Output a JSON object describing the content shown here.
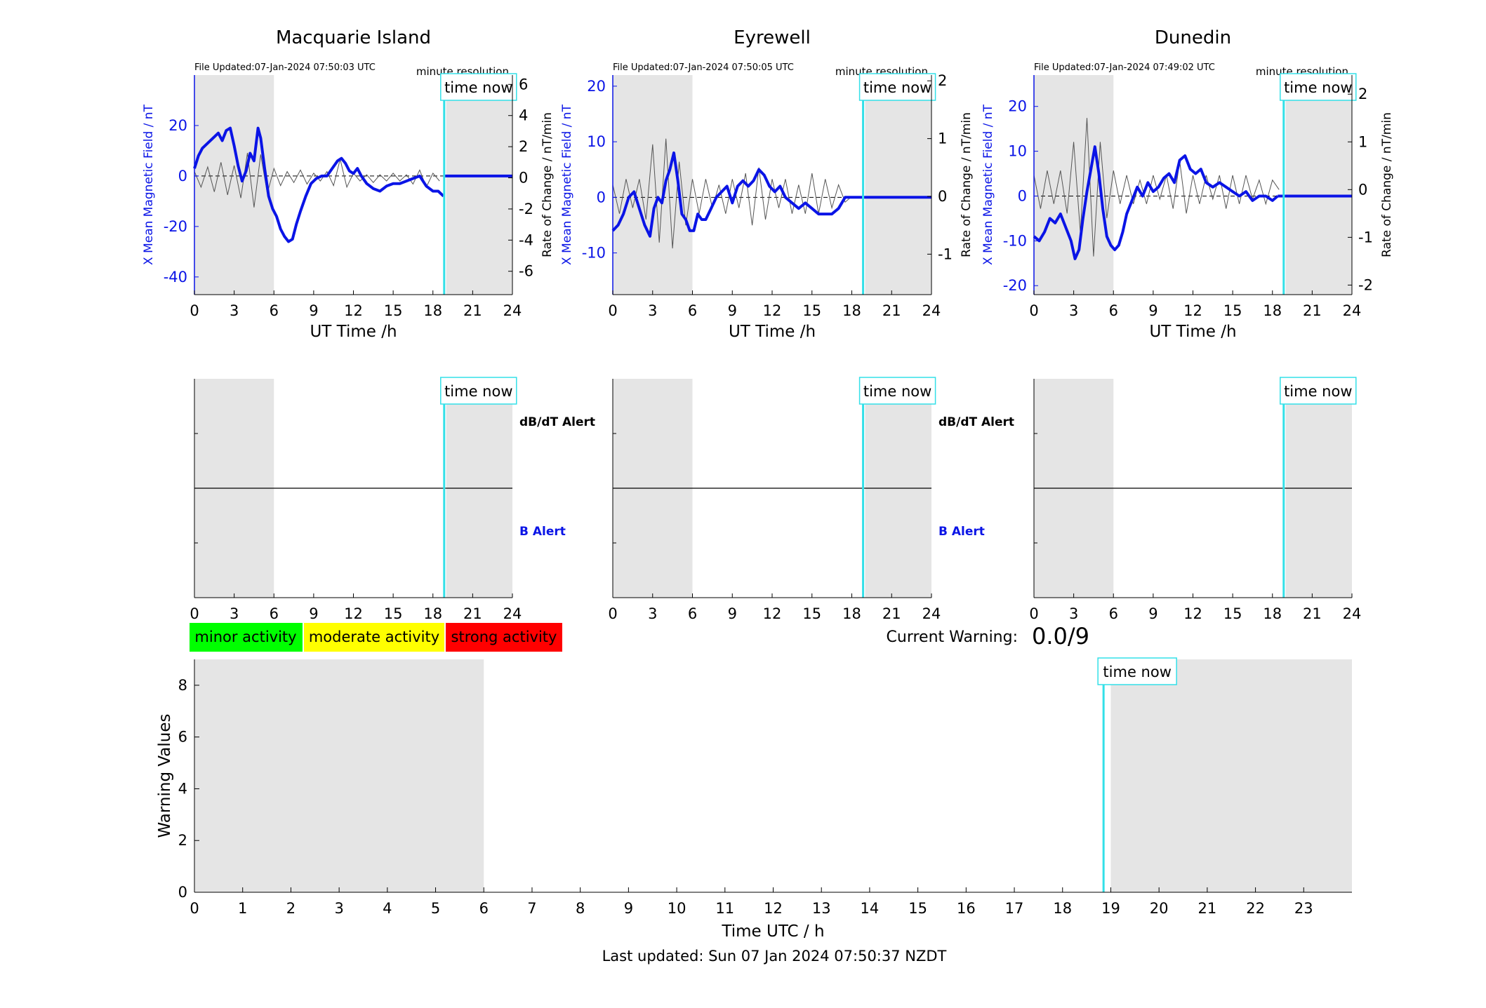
{
  "stations": [
    {
      "name": "Macquarie Island",
      "file_updated": "File Updated:07-Jan-2024 07:50:03 UTC",
      "resolution": "minute resolution",
      "left_ticks": [
        -40,
        -20,
        0,
        20
      ],
      "right_ticks": [
        -6,
        -4,
        -2,
        0,
        2,
        4,
        6
      ],
      "chart_data": {
        "type": "line",
        "ylabel_left": "X Mean Magnetic Field / nT",
        "ylabel_right": "Rate of Change / nT/min",
        "xlabel": "UT Time /h",
        "xlim": [
          0,
          24
        ],
        "ylim_left": [
          -47,
          40
        ],
        "ylim_right": [
          -7.5,
          6.6
        ],
        "series": [
          {
            "axis": "left",
            "x": [
              0,
              0.3,
              0.6,
              1.0,
              1.4,
              1.8,
              2.1,
              2.4,
              2.7,
              3.0,
              3.3,
              3.6,
              3.9,
              4.2,
              4.5,
              4.8,
              5.0,
              5.3,
              5.6,
              5.9,
              6.2,
              6.5,
              6.8,
              7.1,
              7.4,
              7.7,
              8.0,
              8.4,
              8.8,
              9.2,
              9.6,
              10.0,
              10.4,
              10.8,
              11.1,
              11.4,
              11.7,
              12.0,
              12.3,
              12.6,
              13.0,
              13.5,
              14.0,
              14.5,
              15.0,
              15.5,
              16.0,
              16.5,
              17.0,
              17.5,
              18.0,
              18.4,
              18.8
            ],
            "y": [
              3,
              8,
              11,
              13,
              15,
              17,
              14,
              18,
              19,
              12,
              4,
              -2,
              2,
              9,
              6,
              19,
              15,
              3,
              -8,
              -13,
              -16,
              -21,
              -24,
              -26,
              -25,
              -19,
              -14,
              -8,
              -3,
              -1,
              0,
              0,
              3,
              6,
              7,
              5,
              2,
              1,
              3,
              0,
              -3,
              -5,
              -6,
              -4,
              -3,
              -3,
              -2,
              -1,
              0,
              -4,
              -6,
              -6,
              -8
            ]
          },
          {
            "axis": "left",
            "x": [
              18.8,
              24
            ],
            "y": [
              0,
              0
            ]
          },
          {
            "axis": "right",
            "style": "thin-gray",
            "x": [
              0,
              0.5,
              1.0,
              1.5,
              2.0,
              2.5,
              3.0,
              3.5,
              4.0,
              4.5,
              5.0,
              5.5,
              6.0,
              6.5,
              7.0,
              7.5,
              8.0,
              8.5,
              9.0,
              9.5,
              10.0,
              10.5,
              11.0,
              11.5,
              12.0,
              12.5,
              13.0,
              13.5,
              14.0,
              14.5,
              15.0,
              15.5,
              16.0,
              16.5,
              17.0,
              17.5,
              18.0,
              18.5
            ],
            "y": [
              0.4,
              -0.6,
              0.7,
              -0.9,
              1.0,
              -1.1,
              0.8,
              -1.3,
              1.6,
              -1.9,
              1.5,
              -1.0,
              0.6,
              -0.5,
              0.4,
              -0.3,
              0.5,
              -0.4,
              0.3,
              -0.2,
              0.4,
              -0.5,
              1.2,
              -0.6,
              0.3,
              -0.2,
              0.2,
              -0.3,
              0.2,
              -0.2,
              0.3,
              -0.2,
              0.2,
              -0.4,
              0.5,
              -0.6,
              0.3,
              -0.2
            ]
          }
        ]
      }
    },
    {
      "name": "Eyrewell",
      "file_updated": "File Updated:07-Jan-2024 07:50:05 UTC",
      "resolution": "minute resolution",
      "left_ticks": [
        -10,
        0,
        10,
        20
      ],
      "right_ticks": [
        -1,
        0,
        1,
        2
      ],
      "chart_data": {
        "type": "line",
        "ylabel_left": "X Mean Magnetic Field / nT",
        "ylabel_right": "Rate of Change / nT/min",
        "xlabel": "UT Time /h",
        "xlim": [
          0,
          24
        ],
        "ylim_left": [
          -17.5,
          22
        ],
        "ylim_right": [
          -1.7,
          2.1
        ],
        "series": [
          {
            "axis": "left",
            "x": [
              0,
              0.4,
              0.8,
              1.2,
              1.6,
              2.0,
              2.4,
              2.8,
              3.1,
              3.4,
              3.7,
              4.0,
              4.3,
              4.6,
              4.9,
              5.2,
              5.5,
              5.8,
              6.1,
              6.4,
              6.7,
              7.0,
              7.4,
              7.8,
              8.2,
              8.6,
              9.0,
              9.4,
              9.8,
              10.2,
              10.6,
              11.0,
              11.4,
              11.8,
              12.2,
              12.6,
              13.0,
              13.5,
              14.0,
              14.5,
              15.0,
              15.5,
              16.0,
              16.5,
              17.0,
              17.5,
              18.0
            ],
            "y": [
              -6,
              -5,
              -3,
              0,
              1,
              -2,
              -5,
              -7,
              -2,
              0,
              -1,
              3,
              5,
              8,
              3,
              -3,
              -4,
              -6,
              -6,
              -3,
              -4,
              -4,
              -2,
              0,
              1,
              2,
              -1,
              2,
              3,
              2,
              3,
              5,
              4,
              2,
              1,
              2,
              0,
              -1,
              -2,
              -1,
              -2,
              -3,
              -3,
              -3,
              -2,
              0,
              0
            ]
          },
          {
            "axis": "left",
            "x": [
              18.0,
              24
            ],
            "y": [
              0,
              0
            ]
          },
          {
            "axis": "right",
            "style": "thin-gray",
            "x": [
              0,
              0.5,
              1.0,
              1.5,
              2.0,
              2.5,
              3.0,
              3.5,
              4.0,
              4.5,
              5.0,
              5.5,
              6.0,
              6.5,
              7.0,
              7.5,
              8.0,
              8.5,
              9.0,
              9.5,
              10.0,
              10.5,
              11.0,
              11.5,
              12.0,
              12.5,
              13.0,
              13.5,
              14.0,
              14.5,
              15.0,
              15.5,
              16.0,
              16.5,
              17.0,
              17.5,
              18.0
            ],
            "y": [
              0.2,
              -0.3,
              0.3,
              -0.2,
              0.3,
              -0.4,
              0.9,
              -0.8,
              1.0,
              -0.9,
              0.6,
              -0.5,
              0.3,
              -0.3,
              0.3,
              -0.2,
              0.2,
              -0.3,
              0.3,
              -0.2,
              0.4,
              -0.5,
              0.5,
              -0.4,
              0.3,
              -0.2,
              0.3,
              -0.3,
              0.2,
              -0.3,
              0.4,
              -0.3,
              0.3,
              -0.2,
              0.2,
              -0.1,
              0.0
            ]
          }
        ]
      }
    },
    {
      "name": "Dunedin",
      "file_updated": "File Updated:07-Jan-2024 07:49:02 UTC",
      "resolution": "minute resolution",
      "left_ticks": [
        -20,
        -10,
        0,
        10,
        20
      ],
      "right_ticks": [
        -2,
        -1,
        0,
        1,
        2
      ],
      "chart_data": {
        "type": "line",
        "ylabel_left": "X Mean Magnetic Field / nT",
        "ylabel_right": "Rate of Change / nT/min",
        "xlabel": "UT Time /h",
        "xlim": [
          0,
          24
        ],
        "ylim_left": [
          -22,
          27
        ],
        "ylim_right": [
          -2.2,
          2.4
        ],
        "series": [
          {
            "axis": "left",
            "x": [
              0,
              0.4,
              0.8,
              1.2,
              1.6,
              2.0,
              2.4,
              2.8,
              3.1,
              3.4,
              3.7,
              4.0,
              4.3,
              4.6,
              4.9,
              5.2,
              5.5,
              5.8,
              6.1,
              6.4,
              6.7,
              7.0,
              7.4,
              7.8,
              8.2,
              8.6,
              9.0,
              9.4,
              9.8,
              10.2,
              10.6,
              11.0,
              11.4,
              11.8,
              12.2,
              12.6,
              13.0,
              13.5,
              14.0,
              14.5,
              15.0,
              15.5,
              16.0,
              16.5,
              17.0,
              17.5,
              18.0,
              18.4
            ],
            "y": [
              -9,
              -10,
              -8,
              -5,
              -6,
              -4,
              -7,
              -10,
              -14,
              -12,
              -5,
              1,
              6,
              11,
              5,
              -3,
              -9,
              -11,
              -12,
              -11,
              -8,
              -4,
              -1,
              2,
              0,
              3,
              1,
              2,
              4,
              5,
              3,
              8,
              9,
              6,
              5,
              6,
              3,
              2,
              3,
              2,
              1,
              0,
              1,
              -1,
              0,
              0,
              -1,
              0
            ]
          },
          {
            "axis": "left",
            "x": [
              18.4,
              24
            ],
            "y": [
              0,
              0
            ]
          },
          {
            "axis": "right",
            "style": "thin-gray",
            "x": [
              0,
              0.5,
              1.0,
              1.5,
              2.0,
              2.5,
              3.0,
              3.5,
              4.0,
              4.5,
              5.0,
              5.5,
              6.0,
              6.5,
              7.0,
              7.5,
              8.0,
              8.5,
              9.0,
              9.5,
              10.0,
              10.5,
              11.0,
              11.5,
              12.0,
              12.5,
              13.0,
              13.5,
              14.0,
              14.5,
              15.0,
              15.5,
              16.0,
              16.5,
              17.0,
              17.5,
              18.0,
              18.5
            ],
            "y": [
              0.3,
              -0.4,
              0.4,
              -0.3,
              0.4,
              -0.5,
              1.0,
              -0.9,
              1.5,
              -1.4,
              1.0,
              -0.6,
              0.4,
              -0.3,
              0.3,
              -0.3,
              0.2,
              -0.3,
              0.3,
              -0.2,
              0.3,
              -0.4,
              0.6,
              -0.5,
              0.3,
              -0.3,
              0.3,
              -0.2,
              0.3,
              -0.4,
              0.3,
              -0.3,
              0.3,
              -0.2,
              0.2,
              -0.3,
              0.2,
              0.0
            ]
          }
        ]
      }
    }
  ],
  "alert_panel": {
    "dbdt_label": "dB/dT Alert",
    "b_label": "B Alert"
  },
  "time_now_label": "time now",
  "time_now_hour": 18.85,
  "shaded_ranges": [
    [
      0,
      6
    ],
    [
      19,
      24
    ]
  ],
  "station_xticks": [
    0,
    3,
    6,
    9,
    12,
    15,
    18,
    21,
    24
  ],
  "legend": {
    "minor": {
      "label": "minor activity",
      "color": "#00ff00"
    },
    "moderate": {
      "label": "moderate activity",
      "color": "#ffff00"
    },
    "strong": {
      "label": "strong activity",
      "color": "#ff0000"
    }
  },
  "current_warning": {
    "label": "Current Warning:",
    "value": "0.0/9"
  },
  "warning_chart": {
    "chart_data": {
      "type": "bar",
      "xlabel": "Time UTC / h",
      "ylabel": "Warning Values",
      "xlim": [
        0,
        24
      ],
      "ylim": [
        0,
        9
      ],
      "xticks": [
        0,
        1,
        2,
        3,
        4,
        5,
        6,
        7,
        8,
        9,
        10,
        11,
        12,
        13,
        14,
        15,
        16,
        17,
        18,
        19,
        20,
        21,
        22,
        23
      ],
      "yticks": [
        0,
        2,
        4,
        6,
        8
      ],
      "values": []
    }
  },
  "footer": "Last updated: Sun 07 Jan 2024 07:50:37 NZDT",
  "colors": {
    "field": "#0a14e6",
    "rate": "#555555",
    "shade": "#e5e5e5",
    "time_now": "#33e0e8"
  }
}
